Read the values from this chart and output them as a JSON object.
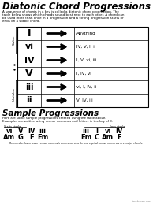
{
  "title": "Diatonic Chord Progressions",
  "intro_lines": [
    "A sequence of chords in a key is called a ",
    "table below shows which chords sound best next to each other. A chord can",
    "be used more than once in a progression and a strong progression starts or",
    "ends on a stable chord."
  ],
  "table_rows": [
    {
      "chord": "I",
      "goes_to": "Anything"
    },
    {
      "chord": "vi",
      "goes_to": "IV, V, I, ii"
    },
    {
      "chord": "IV",
      "goes_to": "I, V, vi, iii"
    },
    {
      "chord": "V",
      "goes_to": "I, IV, vi"
    },
    {
      "chord": "iii",
      "goes_to": "vi, I, IV, ii"
    },
    {
      "chord": "ii",
      "goes_to": "V, IV, iii"
    }
  ],
  "stable_label": "Stable",
  "unstable_label": "Unstable",
  "sample_title": "Sample Progressions",
  "sample_intro1": "Here are some sample progressions created using the table above.",
  "sample_intro2": "Examples are written using roman numerals and letters in the key of C.",
  "sample_left_label": "Starts stable",
  "sample_right_label": "Ends stable",
  "sample_left_numerals": [
    "vi",
    "V",
    "IV",
    "iii"
  ],
  "sample_left_letters": [
    "Am",
    "G",
    "F",
    "Em"
  ],
  "sample_right_numerals": [
    "iii",
    "I",
    "vi",
    "IV"
  ],
  "sample_right_letters": [
    "Em",
    "C",
    "Am",
    "F"
  ],
  "footer": "Remember lower case roman numerals are minor chords and capital roman numerals are major chords.",
  "website": "pianodreams.com",
  "bg_color": "#ffffff",
  "text_color": "#000000"
}
